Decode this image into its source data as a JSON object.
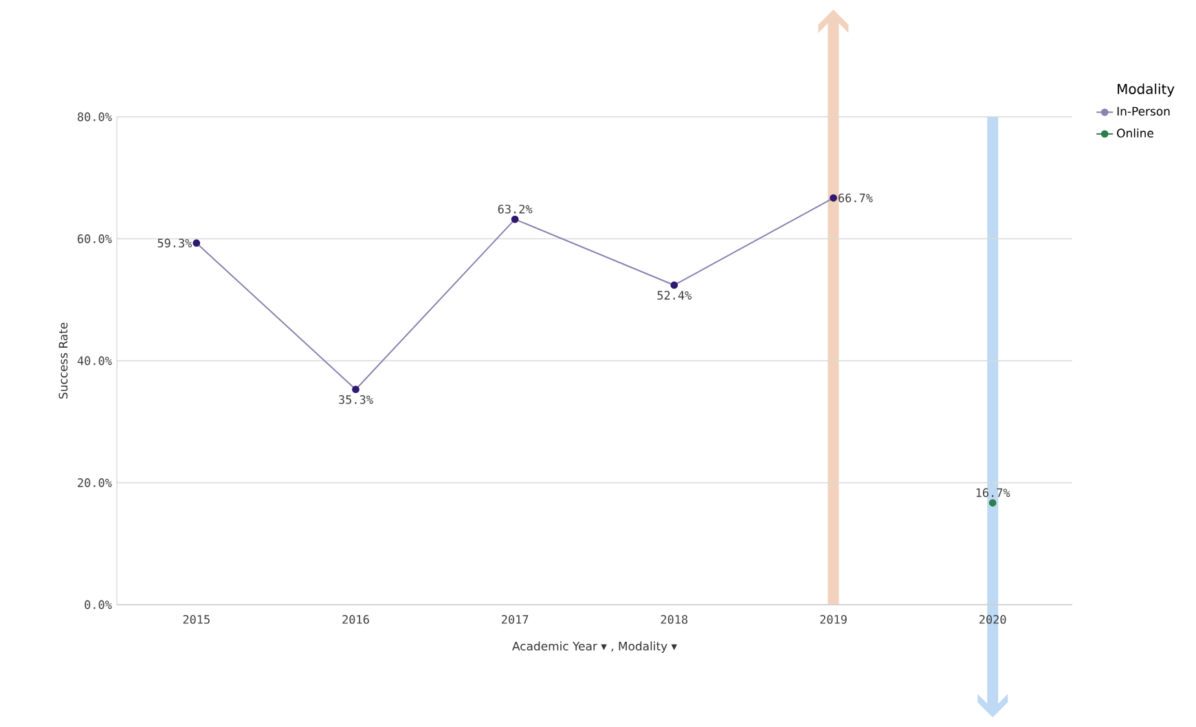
{
  "chart_data": {
    "type": "line",
    "xlabel": "Academic Year ▾ ,  Modality ▾",
    "ylabel": "Success Rate",
    "legend_title": "Modality",
    "categories": [
      "2015",
      "2016",
      "2017",
      "2018",
      "2019",
      "2020"
    ],
    "series": [
      {
        "name": "In-Person",
        "color": "#2e1a72",
        "values": [
          59.3,
          35.3,
          63.2,
          52.4,
          66.7,
          null
        ],
        "value_labels": [
          "59.3%",
          "35.3%",
          "63.2%",
          "52.4%",
          "66.7%",
          null
        ]
      },
      {
        "name": "Online",
        "color": "#2e7d4f",
        "values": [
          null,
          null,
          null,
          null,
          null,
          16.7
        ],
        "value_labels": [
          null,
          null,
          null,
          null,
          null,
          "16.7%"
        ]
      }
    ],
    "ylim": [
      0,
      80
    ],
    "yticks": [
      {
        "value": 0,
        "label": "0.0%"
      },
      {
        "value": 20,
        "label": "20.0%"
      },
      {
        "value": 40,
        "label": "40.0%"
      },
      {
        "value": 60,
        "label": "60.0%"
      },
      {
        "value": 80,
        "label": "80.0%"
      }
    ],
    "grid": "y",
    "legend": "right",
    "marker": "circle",
    "line_style": "solid"
  }
}
